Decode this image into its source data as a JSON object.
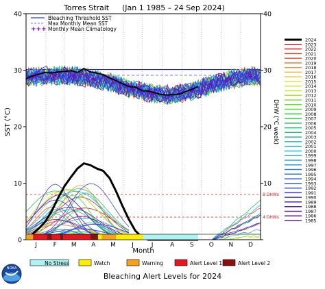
{
  "title": {
    "site": "Torres Strait",
    "range": "(Jan 1 1985 – 24 Sep 2024)"
  },
  "footer_title": "Bleaching Alert Levels for 2024",
  "logo_text": "NOAA",
  "chart_data": {
    "type": "line",
    "x_months": [
      "J",
      "F",
      "M",
      "A",
      "M",
      "J",
      "J",
      "A",
      "S",
      "O",
      "N",
      "D"
    ],
    "xlabel": "Month",
    "ylabel_left": "SST (°C)",
    "ylabel_right": "DHW (°C week)",
    "ylim_left": [
      0,
      40
    ],
    "yticks_left": [
      0,
      10,
      20,
      30,
      40
    ],
    "yticks_right": [
      0,
      10,
      20,
      30,
      40
    ],
    "legend_top": [
      {
        "label": "Bleaching Threshold SST",
        "color": "#0000ff",
        "style": "solid"
      },
      {
        "label": "Max Monthly Mean SST",
        "color": "#7070ff",
        "style": "dashed"
      },
      {
        "label": "Monthly Mean Climatology",
        "color": "#8000c0",
        "style": "plus"
      }
    ],
    "bleaching_threshold_sst": 30.1,
    "max_monthly_mean_sst": 29.1,
    "dhw_reference_lines": [
      {
        "label": "8 DHWs",
        "value": 8
      },
      {
        "label": "4 DHWs",
        "value": 4
      }
    ],
    "climatology_monthly_sst": [
      28.9,
      29.1,
      29.0,
      28.5,
      27.6,
      26.6,
      25.8,
      25.6,
      26.4,
      27.4,
      28.4,
      28.9
    ],
    "sst_2024_x": [
      0,
      10,
      20,
      30,
      40,
      50,
      60,
      70,
      80,
      90,
      100,
      110,
      120,
      130,
      140,
      150,
      160,
      170,
      180,
      190,
      200,
      210,
      220,
      230,
      240,
      250,
      260,
      268
    ],
    "sst_2024_y": [
      28.5,
      29.0,
      29.3,
      29.6,
      29.5,
      29.7,
      29.8,
      29.9,
      29.6,
      30.3,
      29.7,
      29.5,
      29.2,
      28.6,
      28.2,
      27.6,
      27.1,
      27.0,
      26.4,
      26.3,
      26.0,
      25.7,
      25.6,
      25.7,
      25.8,
      26.3,
      26.7,
      27.1
    ],
    "dhw_2024_x": [
      0,
      10,
      20,
      30,
      40,
      50,
      60,
      70,
      80,
      90,
      100,
      110,
      120,
      130,
      140,
      150,
      160,
      170,
      180,
      190,
      200,
      220,
      268
    ],
    "dhw_2024_y": [
      0.3,
      1.0,
      2.0,
      3.2,
      5.1,
      7.4,
      9.5,
      11.1,
      12.6,
      13.5,
      13.2,
      12.6,
      12.2,
      10.9,
      8.6,
      6.0,
      3.6,
      1.6,
      0.5,
      0.0,
      0.0,
      0.0,
      0.0
    ],
    "years_legend": [
      {
        "year": "2024",
        "color": "#000000"
      },
      {
        "year": "2023",
        "color": "#a52a2a"
      },
      {
        "year": "2022",
        "color": "#d41a1a"
      },
      {
        "year": "2021",
        "color": "#e8321e"
      },
      {
        "year": "2020",
        "color": "#f0502a"
      },
      {
        "year": "2019",
        "color": "#f47432"
      },
      {
        "year": "2018",
        "color": "#f69638"
      },
      {
        "year": "2017",
        "color": "#f5b43a"
      },
      {
        "year": "2016",
        "color": "#f2cc38"
      },
      {
        "year": "2015",
        "color": "#eee032"
      },
      {
        "year": "2014",
        "color": "#dcea2c"
      },
      {
        "year": "2013",
        "color": "#c2ea2a"
      },
      {
        "year": "2012",
        "color": "#a4e628"
      },
      {
        "year": "2011",
        "color": "#86e22a"
      },
      {
        "year": "2010",
        "color": "#6ade2e"
      },
      {
        "year": "2009",
        "color": "#50da34"
      },
      {
        "year": "2008",
        "color": "#3ad43c"
      },
      {
        "year": "2007",
        "color": "#2ace4a"
      },
      {
        "year": "2006",
        "color": "#20c85c"
      },
      {
        "year": "2005",
        "color": "#1cc470"
      },
      {
        "year": "2004",
        "color": "#1cc286"
      },
      {
        "year": "2003",
        "color": "#1cc09c"
      },
      {
        "year": "2002",
        "color": "#1cbeb2"
      },
      {
        "year": "2001",
        "color": "#1cbcc6"
      },
      {
        "year": "2000",
        "color": "#1cb8d8"
      },
      {
        "year": "1999",
        "color": "#1eb0e4"
      },
      {
        "year": "1998",
        "color": "#22a4ec"
      },
      {
        "year": "1997",
        "color": "#2696f0"
      },
      {
        "year": "1996",
        "color": "#2a86f2"
      },
      {
        "year": "1995",
        "color": "#2e76f2"
      },
      {
        "year": "1994",
        "color": "#3266f0"
      },
      {
        "year": "1993",
        "color": "#3656ec"
      },
      {
        "year": "1992",
        "color": "#3a48e6"
      },
      {
        "year": "1991",
        "color": "#3e3ce0"
      },
      {
        "year": "1990",
        "color": "#4232da"
      },
      {
        "year": "1989",
        "color": "#482ad2"
      },
      {
        "year": "1988",
        "color": "#4e24c8"
      },
      {
        "year": "1987",
        "color": "#561ebe"
      },
      {
        "year": "1986",
        "color": "#5e1ab4"
      },
      {
        "year": "1985",
        "color": "#6618aa"
      }
    ],
    "alert_legend": [
      {
        "label": "No Stress",
        "color": "#aef4f4"
      },
      {
        "label": "Watch",
        "color": "#ffee00"
      },
      {
        "label": "Warning",
        "color": "#f7a21a"
      },
      {
        "label": "Alert Level 1",
        "color": "#e8141e"
      },
      {
        "label": "Alert Level 2",
        "color": "#8c1010"
      }
    ],
    "alert_strip_2024": [
      {
        "from": 0,
        "to": 11,
        "level": "Warning"
      },
      {
        "from": 11,
        "to": 33,
        "level": "Alert Level 1"
      },
      {
        "from": 33,
        "to": 40,
        "level": "Alert Level 2"
      },
      {
        "from": 40,
        "to": 53,
        "level": "Alert Level 1"
      },
      {
        "from": 53,
        "to": 58,
        "level": "Alert Level 2"
      },
      {
        "from": 58,
        "to": 100,
        "level": "Alert Level 1"
      },
      {
        "from": 100,
        "to": 112,
        "level": "Alert Level 2"
      },
      {
        "from": 112,
        "to": 118,
        "level": "Watch"
      },
      {
        "from": 118,
        "to": 140,
        "level": "Warning"
      },
      {
        "from": 140,
        "to": 182,
        "level": "Watch"
      },
      {
        "from": 182,
        "to": 268,
        "level": "No Stress"
      }
    ]
  }
}
